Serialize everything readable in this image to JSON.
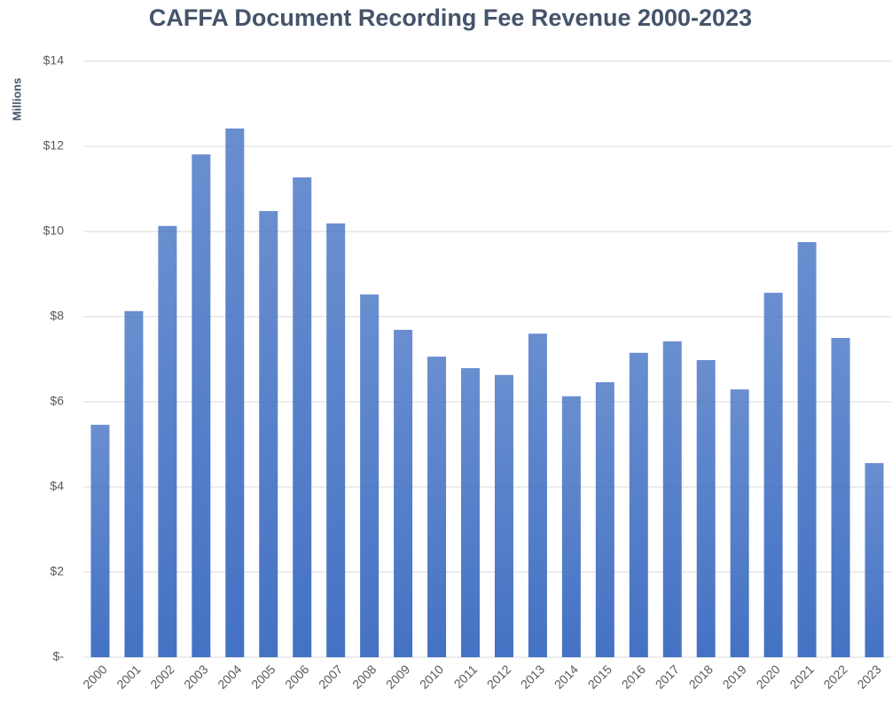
{
  "chart_data": {
    "type": "bar",
    "title": "CAFFA Document Recording Fee Revenue 2000-2023",
    "y_label": "Millions",
    "categories": [
      "2000",
      "2001",
      "2002",
      "2003",
      "2004",
      "2005",
      "2006",
      "2007",
      "2008",
      "2009",
      "2010",
      "2011",
      "2012",
      "2013",
      "2014",
      "2015",
      "2016",
      "2017",
      "2018",
      "2019",
      "2020",
      "2021",
      "2022",
      "2023"
    ],
    "values": [
      5.46,
      8.13,
      10.13,
      11.81,
      12.42,
      10.48,
      11.27,
      10.19,
      8.52,
      7.69,
      7.06,
      6.79,
      6.63,
      7.6,
      6.13,
      6.46,
      7.15,
      7.42,
      6.98,
      6.29,
      8.56,
      9.75,
      7.5,
      4.56
    ],
    "color": "#4472c4",
    "ylim": [
      0,
      14
    ],
    "yticks": [
      {
        "value": 0,
        "label": "$-"
      },
      {
        "value": 2,
        "label": "$2"
      },
      {
        "value": 4,
        "label": "$4"
      },
      {
        "value": 6,
        "label": "$6"
      },
      {
        "value": 8,
        "label": "$8"
      },
      {
        "value": 10,
        "label": "$10"
      },
      {
        "value": 12,
        "label": "$12"
      },
      {
        "value": 14,
        "label": "$14"
      }
    ],
    "grid": true
  }
}
